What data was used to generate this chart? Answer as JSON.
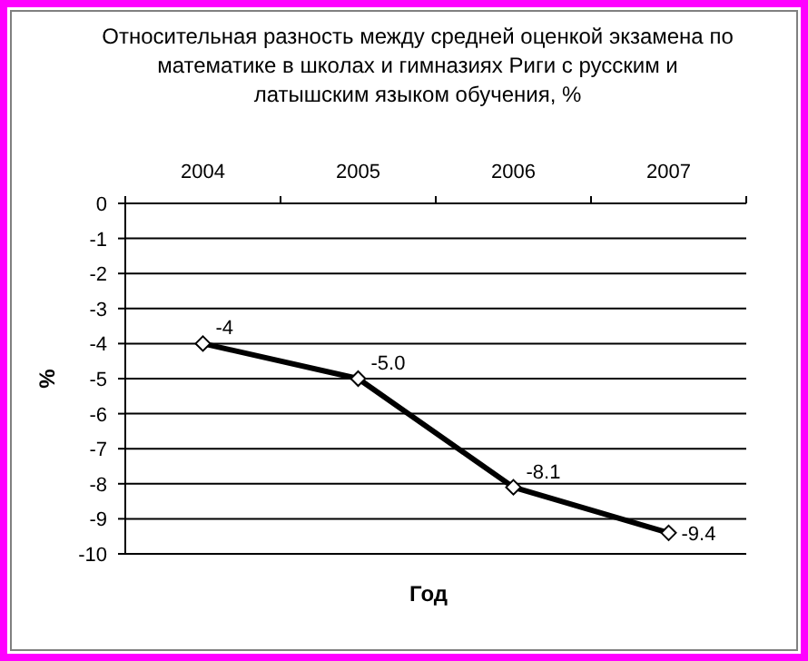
{
  "chart_data": {
    "type": "line",
    "title": "Относительная разность между средней оценкой экзамена по математике в школах и гимназиях Риги с русским и латышским языком обучения, %",
    "xlabel": "Год",
    "ylabel": "%",
    "categories": [
      "2004",
      "2005",
      "2006",
      "2007"
    ],
    "series": [
      {
        "color": "#000000",
        "values": [
          -4,
          -5.0,
          -8.1,
          -9.4
        ],
        "value_labels": [
          "-4",
          "-5.0",
          "-8.1",
          "-9.4"
        ]
      }
    ],
    "ylim": [
      -10,
      0
    ],
    "yticks": [
      -10,
      -9,
      -8,
      -7,
      -6,
      -5,
      -4,
      -3,
      -2,
      -1,
      0
    ],
    "grid": "y",
    "marker": "diamond",
    "line_style": "solid"
  }
}
